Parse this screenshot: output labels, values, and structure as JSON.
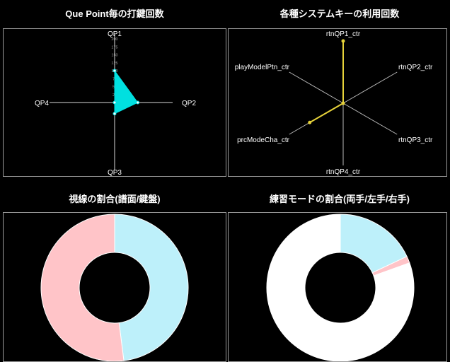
{
  "colors": {
    "background": "#000000",
    "panel_border": "#9a9a9a",
    "cyan": "#00e0e0",
    "yellow": "#e6d23a",
    "pie_blue": "#bdf0fa",
    "pie_pink": "#ffc4c8",
    "pie_white": "#ffffff"
  },
  "titles": {
    "radar1": "Que Point毎の打鍵回数",
    "radar2": "各種システムキーの利用回数",
    "donut1": "視線の割合(譜面/鍵盤)",
    "donut2": "練習モードの割合(両手/左手/右手)"
  },
  "chart_data": [
    {
      "type": "radar",
      "title": "Que Point毎の打鍵回数",
      "axes": [
        "QP1",
        "QP2",
        "QP3",
        "QP4"
      ],
      "tick_labels": [
        "25",
        "50",
        "75",
        "100",
        "125",
        "150",
        "175",
        "200"
      ],
      "range": [
        0,
        200
      ],
      "values": [
        100,
        68,
        35,
        0
      ],
      "color": "#00e0e0"
    },
    {
      "type": "radar",
      "title": "各種システムキーの利用回数",
      "axes": [
        "rtnQP1_ctr",
        "rtnQP2_ctr",
        "rtnQP3_ctr",
        "rtnQP4_ctr",
        "prcModeCha_ctr",
        "playModelPtn_ctr"
      ],
      "range": [
        0,
        100
      ],
      "values": [
        100,
        0,
        0,
        0,
        62,
        0
      ],
      "color": "#e6d23a"
    },
    {
      "type": "pie",
      "title": "視線の割合(譜面/鍵盤)",
      "donut": true,
      "slices": [
        {
          "value": 48,
          "color": "#bdf0fa"
        },
        {
          "value": 52,
          "color": "#ffc4c8"
        }
      ]
    },
    {
      "type": "pie",
      "title": "練習モードの割合(両手/左手/右手)",
      "donut": true,
      "slices": [
        {
          "value": 18,
          "color": "#bdf0fa"
        },
        {
          "value": 1.5,
          "color": "#ffc4c8"
        },
        {
          "value": 80.5,
          "color": "#ffffff"
        }
      ]
    }
  ]
}
